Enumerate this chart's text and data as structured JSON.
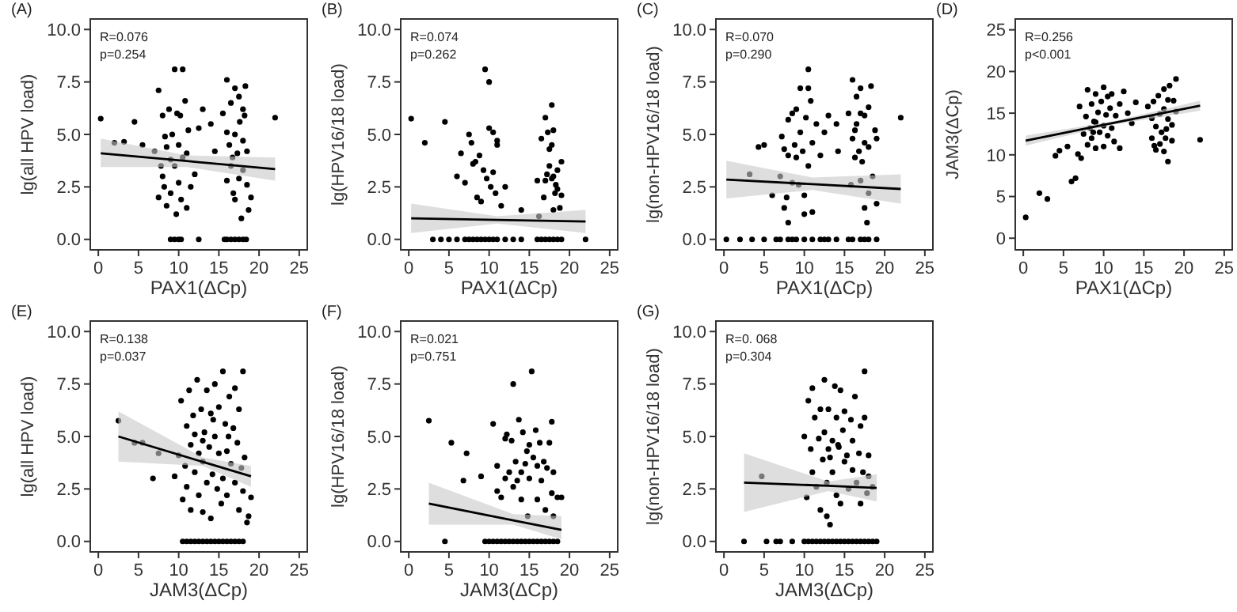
{
  "chart_data": [
    {
      "type": "scatter",
      "title": "(A)",
      "xlabel": "PAX1(ΔCp)",
      "ylabel": "lg(all HPV load)",
      "xlim": [
        -1,
        26
      ],
      "xticks": [
        0,
        5,
        10,
        15,
        20,
        25
      ],
      "ylim": [
        -0.5,
        10.5
      ],
      "yticks": [
        {
          "value": 0,
          "label": "0.0"
        },
        {
          "value": 2.5,
          "label": "2.5"
        },
        {
          "value": 5,
          "label": "5.0"
        },
        {
          "value": 7.5,
          "label": "7.5"
        },
        {
          "value": 10,
          "label": "10.0"
        }
      ],
      "annotations": [
        "R=0.076",
        "p=0.254"
      ],
      "series": [
        {
          "marker": "circle",
          "color": "#000000",
          "x": [
            0.3,
            2,
            3.2,
            4.5,
            5.5,
            22,
            7,
            7.5,
            7.5,
            8,
            8,
            8.2,
            8.5,
            8.5,
            8.8,
            9,
            9,
            9.2,
            9.5,
            9.5,
            9.7,
            10,
            10,
            10.2,
            10.5,
            10.5,
            10.8,
            11,
            11,
            11.2,
            11.5,
            8.3,
            9.8,
            7.8,
            10.3,
            12.5,
            13,
            14,
            14.5,
            12,
            15.5,
            16,
            16,
            16,
            16.3,
            16.5,
            16.5,
            16.8,
            17,
            17,
            17,
            17.3,
            17.5,
            17.5,
            17.8,
            18,
            18,
            18,
            18.2,
            18.5,
            18.5,
            18.7,
            18.3,
            19,
            17.6,
            16.7,
            9,
            9.5,
            10,
            10.3,
            12.5,
            16,
            16.5,
            17,
            17.5,
            18,
            18.4,
            15.7
          ],
          "values": [
            5.75,
            4.6,
            4.65,
            5.6,
            4.5,
            5.8,
            4.2,
            7.1,
            2.0,
            5.9,
            3.0,
            2.5,
            4.4,
            1.6,
            6.2,
            3.8,
            2.2,
            5.0,
            8.1,
            3.5,
            1.2,
            4.5,
            2.7,
            5.9,
            8.1,
            3.9,
            6.6,
            4.1,
            1.5,
            5.2,
            2.5,
            4.9,
            6.0,
            3.5,
            1.9,
            5.3,
            6.2,
            5.5,
            4.2,
            3.1,
            6.0,
            7.6,
            5.1,
            2.8,
            4.5,
            6.5,
            3.5,
            2.2,
            7.2,
            5.0,
            1.9,
            4.1,
            6.8,
            2.9,
            1.0,
            6.2,
            4.7,
            3.3,
            5.9,
            2.6,
            4.2,
            1.4,
            7.3,
            2.0,
            5.6,
            3.9,
            0,
            0,
            0,
            0,
            0,
            0,
            0,
            0,
            0,
            0,
            0,
            0
          ]
        },
        {
          "type": "line",
          "color": "#000000",
          "x": [
            0.3,
            11,
            22
          ],
          "values": [
            4.1,
            3.73,
            3.35
          ],
          "lower": [
            3.45,
            3.45,
            2.8
          ],
          "upper": [
            4.8,
            4.0,
            3.9
          ]
        }
      ]
    },
    {
      "type": "scatter",
      "title": "(B)",
      "xlabel": "PAX1(ΔCp)",
      "ylabel": "lg(HPV16/18 load)",
      "xlim": [
        -1,
        26
      ],
      "xticks": [
        0,
        5,
        10,
        15,
        20,
        25
      ],
      "ylim": [
        -0.5,
        10.5
      ],
      "yticks": [
        {
          "value": 0,
          "label": "0.0"
        },
        {
          "value": 2.5,
          "label": "2.5"
        },
        {
          "value": 5,
          "label": "5.0"
        },
        {
          "value": 7.5,
          "label": "7.5"
        },
        {
          "value": 10,
          "label": "10.0"
        }
      ],
      "annotations": [
        "R=0.074",
        "p=0.262"
      ],
      "series": [
        {
          "marker": "circle",
          "color": "#000000",
          "x": [
            0.3,
            2,
            4.5,
            6,
            6.5,
            7,
            7.5,
            7.8,
            8,
            8.3,
            8.5,
            8.8,
            9,
            9.3,
            9.5,
            9.7,
            10,
            10,
            10.2,
            10.5,
            10.5,
            10.8,
            11,
            11,
            11.5,
            12,
            14,
            16,
            16.2,
            16.5,
            16.8,
            17,
            17,
            17.3,
            17.5,
            17.5,
            17.8,
            17.8,
            17.8,
            18,
            18,
            18,
            18.2,
            18.3,
            18.5,
            18.5,
            18.8,
            19,
            19,
            17.2,
            3,
            4,
            5,
            6,
            7,
            7.5,
            8,
            8.5,
            9,
            9.5,
            10,
            10.5,
            11,
            12,
            13,
            14,
            16,
            16.5,
            17,
            17.5,
            18,
            18.5,
            19,
            22
          ],
          "values": [
            5.75,
            4.6,
            5.6,
            3.0,
            4.1,
            2.7,
            5.0,
            4.6,
            3.6,
            3.7,
            2.0,
            4.0,
            1.8,
            3.3,
            8.1,
            2.9,
            7.5,
            5.3,
            2.5,
            5.1,
            3.2,
            2.2,
            4.7,
            4.5,
            1.6,
            2.5,
            1.4,
            2.8,
            1.1,
            4.8,
            2.0,
            5.8,
            2.8,
            5.1,
            4.3,
            3.5,
            6.4,
            4.5,
            2.9,
            5.2,
            3.0,
            1.4,
            2.2,
            2.6,
            3.3,
            2.4,
            1.5,
            3.7,
            2.1,
            3.1,
            0,
            0,
            0,
            0,
            0,
            0,
            0,
            0,
            0,
            0,
            0,
            0,
            0,
            0,
            0,
            0,
            0,
            0,
            0,
            0,
            0,
            0,
            0,
            0
          ]
        },
        {
          "type": "line",
          "color": "#000000",
          "x": [
            0.3,
            11,
            22
          ],
          "values": [
            1.0,
            0.93,
            0.85
          ],
          "lower": [
            0.3,
            0.75,
            0.3
          ],
          "upper": [
            1.7,
            1.1,
            1.4
          ]
        }
      ]
    },
    {
      "type": "scatter",
      "title": "(C)",
      "xlabel": "PAX1(ΔCp)",
      "ylabel": "lg(non-HPV16/18 load)",
      "xlim": [
        -1,
        26
      ],
      "xticks": [
        0,
        5,
        10,
        15,
        20,
        25
      ],
      "ylim": [
        -0.5,
        10.5
      ],
      "yticks": [
        {
          "value": 0,
          "label": "0.0"
        },
        {
          "value": 2.5,
          "label": "2.5"
        },
        {
          "value": 5,
          "label": "5.0"
        },
        {
          "value": 7.5,
          "label": "7.5"
        },
        {
          "value": 10,
          "label": "10.0"
        }
      ],
      "annotations": [
        "R=0.070",
        "p=0.290"
      ],
      "series": [
        {
          "marker": "circle",
          "color": "#000000",
          "x": [
            3.2,
            4.3,
            5,
            6,
            7,
            7.2,
            7.5,
            7.5,
            7.8,
            8,
            8,
            8,
            8.5,
            8.5,
            8.8,
            9,
            9,
            9.3,
            9.5,
            9.5,
            9.8,
            10,
            10,
            10.2,
            10.5,
            10.5,
            10.5,
            10.8,
            11,
            11,
            11.5,
            12,
            12.5,
            13,
            14,
            14.2,
            15.5,
            15.8,
            16,
            16,
            16.3,
            16.5,
            16.5,
            16.8,
            17,
            17,
            17.2,
            17.5,
            17.5,
            17.5,
            17.8,
            18,
            18,
            18,
            18.3,
            18.5,
            18.8,
            19,
            19,
            22,
            17,
            16.3,
            0.3,
            2,
            3.5,
            5,
            6.5,
            7,
            8,
            8.5,
            9,
            10,
            11,
            12,
            12.5,
            13,
            14,
            15.5,
            16,
            17,
            17.5,
            18,
            19
          ],
          "values": [
            3.1,
            4.4,
            4.5,
            2.1,
            3.0,
            4.9,
            1.5,
            4.3,
            2.0,
            0.8,
            5.7,
            4.0,
            2.7,
            6.0,
            4.5,
            6.2,
            3.9,
            2.6,
            7.2,
            5.1,
            4.2,
            2.1,
            1.2,
            5.8,
            7.2,
            8.1,
            3.5,
            6.6,
            4.6,
            1.3,
            5.5,
            4.0,
            5.1,
            5.9,
            5.5,
            4.2,
            6.0,
            2.6,
            7.6,
            4.8,
            3.9,
            6.8,
            5.5,
            4.2,
            7.2,
            2.8,
            3.7,
            5.9,
            1.5,
            4.6,
            0.8,
            6.3,
            4.4,
            2.2,
            7.3,
            3.0,
            5.2,
            4.8,
            1.7,
            5.8,
            6.0,
            5.2,
            0,
            0,
            0,
            0,
            0,
            0,
            0,
            0,
            0,
            0,
            0,
            0,
            0,
            0,
            0,
            0,
            0,
            0,
            0,
            0,
            0
          ]
        },
        {
          "type": "line",
          "color": "#000000",
          "x": [
            0.3,
            11,
            22
          ],
          "values": [
            2.85,
            2.63,
            2.4
          ],
          "lower": [
            1.95,
            2.35,
            1.7
          ],
          "upper": [
            3.75,
            2.95,
            3.1
          ]
        }
      ]
    },
    {
      "type": "scatter",
      "title": "(D)",
      "xlabel": "PAX1(ΔCp)",
      "ylabel": "JAM3(ΔCp)",
      "xlim": [
        -1,
        26
      ],
      "xticks": [
        0,
        5,
        10,
        15,
        20,
        25
      ],
      "ylim": [
        -1.4,
        26.3
      ],
      "yticks": [
        0,
        5,
        10,
        15,
        20,
        25
      ],
      "annotations": [
        "R=0.256",
        "p<0.001"
      ],
      "series": [
        {
          "marker": "circle",
          "color": "#000000",
          "x": [
            0.3,
            2,
            3,
            4,
            4.5,
            5.5,
            6,
            6.5,
            6.8,
            7,
            7.2,
            7.5,
            7.8,
            8,
            8,
            8.3,
            8.5,
            8.5,
            8.8,
            9,
            9,
            9.3,
            9.5,
            9.7,
            10,
            10,
            10,
            10.3,
            10.5,
            10.5,
            10.8,
            11,
            11,
            11.3,
            11.5,
            12,
            12,
            12.5,
            13,
            13.5,
            14,
            9,
            8.7,
            15.5,
            16,
            16,
            16.2,
            16.5,
            16.5,
            16.8,
            17,
            17,
            17.2,
            17.5,
            17.5,
            17.5,
            17.8,
            18,
            18,
            18,
            18.2,
            18.5,
            18.5,
            18.7,
            19,
            19,
            22,
            16.3,
            17.7
          ],
          "values": [
            2.5,
            5.4,
            4.7,
            9.9,
            10.5,
            11,
            6.8,
            7.2,
            10.1,
            15.8,
            9.6,
            12.5,
            14.6,
            17.8,
            11.2,
            13.2,
            16.1,
            12.0,
            14.0,
            17.3,
            10.8,
            15.1,
            12.7,
            16.4,
            18.1,
            13.5,
            11.0,
            14.8,
            17.0,
            12.3,
            15.6,
            13.2,
            17.3,
            11.6,
            14.7,
            10.8,
            16.1,
            17.6,
            15.0,
            13.8,
            16.3,
            13.9,
            12.7,
            15.8,
            14.4,
            12.0,
            16.4,
            10.6,
            13.4,
            17.1,
            11.3,
            14.9,
            12.7,
            17.9,
            15.5,
            10.4,
            13.1,
            9.2,
            16.6,
            14.3,
            18.3,
            13.6,
            11.7,
            16.5,
            19.1,
            15.2,
            11.8,
            11.1,
            12.0
          ]
        },
        {
          "type": "line",
          "color": "#000000",
          "x": [
            0.3,
            11,
            22
          ],
          "values": [
            11.7,
            13.8,
            15.9
          ],
          "lower": [
            11.1,
            13.6,
            15.3
          ],
          "upper": [
            12.3,
            14.0,
            16.5
          ]
        }
      ]
    },
    {
      "type": "scatter",
      "title": "(E)",
      "xlabel": "JAM3(ΔCp)",
      "ylabel": "lg(all HPV load)",
      "xlim": [
        -1,
        26
      ],
      "xticks": [
        0,
        5,
        10,
        15,
        20,
        25
      ],
      "ylim": [
        -0.5,
        10.5
      ],
      "yticks": [
        {
          "value": 0,
          "label": "0.0"
        },
        {
          "value": 2.5,
          "label": "2.5"
        },
        {
          "value": 5,
          "label": "5.0"
        },
        {
          "value": 7.5,
          "label": "7.5"
        },
        {
          "value": 10,
          "label": "10.0"
        }
      ],
      "annotations": [
        "R=0.138",
        "p=0.037"
      ],
      "series": [
        {
          "marker": "circle",
          "color": "#000000",
          "x": [
            2.5,
            4.5,
            5.5,
            6.8,
            7.5,
            9.5,
            10,
            10.3,
            10.5,
            10.8,
            11,
            11,
            11.3,
            11.5,
            11.5,
            11.8,
            12,
            12,
            12.3,
            12.5,
            12.5,
            12.8,
            13,
            13,
            13.2,
            13.5,
            13.5,
            13.8,
            14,
            14,
            14.2,
            14.5,
            14.5,
            14.8,
            15,
            15,
            15.3,
            15.5,
            15.5,
            15.8,
            16,
            16,
            16.3,
            16.5,
            16.8,
            17,
            17,
            17.3,
            17.5,
            17.5,
            17.8,
            18,
            18,
            18.2,
            18.5,
            18.7,
            19,
            13,
            14.3,
            16.2,
            10.5,
            11,
            11.5,
            12,
            12.5,
            13,
            13.5,
            14,
            14.5,
            15,
            15.5,
            16,
            16.5,
            17,
            17.5,
            18
          ],
          "values": [
            5.75,
            4.7,
            4.7,
            3.0,
            4.2,
            3.1,
            4.1,
            6.7,
            2.0,
            3.6,
            5.5,
            2.6,
            7.2,
            4.6,
            1.5,
            6.0,
            3.3,
            5.1,
            7.7,
            2.2,
            4.2,
            6.3,
            3.8,
            1.4,
            5.2,
            7.2,
            2.8,
            4.5,
            6.1,
            1.1,
            3.2,
            7.5,
            5.0,
            2.5,
            4.2,
            6.4,
            1.8,
            8.1,
            3.0,
            5.6,
            4.3,
            2.2,
            6.9,
            3.7,
            5.4,
            2.8,
            7.3,
            4.7,
            1.5,
            6.3,
            3.5,
            8.1,
            2.4,
            4.0,
            0.9,
            1.2,
            2.1,
            4.8,
            5.8,
            5.0,
            0,
            0,
            0,
            0,
            0,
            0,
            0,
            0,
            0,
            0,
            0,
            0,
            0,
            0,
            0,
            0
          ]
        },
        {
          "type": "line",
          "color": "#000000",
          "x": [
            2.5,
            13,
            19
          ],
          "values": [
            5.0,
            3.79,
            3.1
          ],
          "lower": [
            3.8,
            3.6,
            2.6
          ],
          "upper": [
            6.2,
            4.0,
            3.6
          ]
        }
      ]
    },
    {
      "type": "scatter",
      "title": "(F)",
      "xlabel": "JAM3(ΔCp)",
      "ylabel": "lg(HPV16/18 load)",
      "xlim": [
        -1,
        26
      ],
      "xticks": [
        0,
        5,
        10,
        15,
        20,
        25
      ],
      "ylim": [
        -0.5,
        10.5
      ],
      "yticks": [
        {
          "value": 0,
          "label": "0.0"
        },
        {
          "value": 2.5,
          "label": "2.5"
        },
        {
          "value": 5,
          "label": "5.0"
        },
        {
          "value": 7.5,
          "label": "7.5"
        },
        {
          "value": 10,
          "label": "10.0"
        }
      ],
      "annotations": [
        "R=0.021",
        "p=0.751"
      ],
      "series": [
        {
          "marker": "circle",
          "color": "#000000",
          "x": [
            2.5,
            5.3,
            6.8,
            7.2,
            9,
            10.5,
            11,
            11,
            11.5,
            12,
            12.2,
            12.5,
            12.8,
            13,
            13,
            13.3,
            13.5,
            13.7,
            14,
            14,
            14.2,
            14.5,
            14.8,
            15,
            15,
            15.3,
            15.5,
            15.8,
            16,
            16,
            16.3,
            16.5,
            16.8,
            17,
            17.2,
            17.5,
            17.8,
            17.8,
            18,
            18,
            18.5,
            19,
            12,
            14.7,
            4.5,
            9.5,
            10,
            10.5,
            11,
            11.5,
            12,
            12.5,
            13,
            13.5,
            14,
            14.5,
            15,
            15.5,
            16,
            16.5,
            17,
            17.5,
            18,
            18.5
          ],
          "values": [
            5.75,
            4.7,
            2.9,
            4.2,
            3.1,
            5.6,
            2.4,
            3.6,
            2.1,
            4.9,
            5.1,
            3.3,
            4.8,
            7.5,
            2.6,
            3.8,
            2.9,
            5.8,
            3.3,
            2.0,
            5.2,
            3.7,
            1.2,
            4.6,
            3.0,
            8.1,
            4.0,
            5.3,
            3.6,
            2.0,
            4.7,
            2.9,
            3.8,
            1.5,
            3.5,
            4.7,
            5.7,
            2.3,
            3.3,
            1.2,
            2.1,
            2.1,
            3.0,
            4.3,
            0,
            0,
            0,
            0,
            0,
            0,
            0,
            0,
            0,
            0,
            0,
            0,
            0,
            0,
            0,
            0,
            0,
            0,
            0,
            0
          ]
        },
        {
          "type": "line",
          "color": "#000000",
          "x": [
            2.5,
            13,
            19
          ],
          "values": [
            1.8,
            1.0,
            0.55
          ],
          "lower": [
            0.8,
            0.8,
            0.1
          ],
          "upper": [
            2.8,
            1.3,
            1.2
          ]
        }
      ]
    },
    {
      "type": "scatter",
      "title": "(G)",
      "xlabel": "JAM3(ΔCp)",
      "ylabel": "lg(non-HPV16/18 load)",
      "xlim": [
        -1,
        26
      ],
      "xticks": [
        0,
        5,
        10,
        15,
        20,
        25
      ],
      "ylim": [
        -0.5,
        10.5
      ],
      "yticks": [
        {
          "value": 0,
          "label": "0.0"
        },
        {
          "value": 2.5,
          "label": "2.5"
        },
        {
          "value": 5,
          "label": "5.0"
        },
        {
          "value": 7.5,
          "label": "7.5"
        },
        {
          "value": 10,
          "label": "10.0"
        }
      ],
      "annotations": [
        "R=0. 068",
        "p=0.304"
      ],
      "series": [
        {
          "marker": "circle",
          "color": "#000000",
          "x": [
            4.7,
            10,
            10.3,
            10.5,
            10.8,
            11,
            11,
            11.3,
            11.5,
            11.8,
            12,
            12,
            12.3,
            12.5,
            12.5,
            12.8,
            12.8,
            13,
            13,
            13.2,
            13.5,
            13.5,
            13.8,
            14,
            14,
            14.3,
            14.5,
            14.5,
            14.8,
            15,
            15,
            15.3,
            15.5,
            15.8,
            16,
            16,
            16.3,
            16.5,
            16.8,
            17,
            17,
            17.3,
            17.5,
            17.5,
            17.8,
            18,
            18,
            18.5,
            13.2,
            14.2,
            2.5,
            5.3,
            6.5,
            7,
            8.5,
            10,
            10.5,
            11,
            11.5,
            12,
            12.5,
            13,
            13.5,
            14,
            14.5,
            15,
            15.5,
            16,
            16.5,
            17,
            17.5,
            18,
            18.5,
            19
          ],
          "values": [
            3.1,
            5.0,
            2.1,
            6.7,
            4.4,
            3.3,
            7.3,
            5.9,
            2.6,
            4.9,
            1.5,
            6.3,
            3.9,
            7.7,
            5.2,
            1.2,
            2.8,
            4.4,
            6.3,
            0.8,
            4.8,
            3.3,
            7.4,
            5.9,
            2.2,
            4.5,
            7.2,
            1.8,
            5.3,
            3.8,
            6.2,
            4.1,
            2.5,
            5.8,
            3.4,
            4.8,
            6.9,
            2.8,
            4.2,
            5.5,
            1.8,
            3.3,
            8.1,
            5.9,
            2.3,
            4.1,
            3.1,
            2.6,
            4.0,
            4.6,
            0,
            0,
            0,
            0,
            0,
            0,
            0,
            0,
            0,
            0,
            0,
            0,
            0,
            0,
            0,
            0,
            0,
            0,
            0,
            0,
            0,
            0,
            0,
            0
          ]
        },
        {
          "type": "line",
          "color": "#000000",
          "x": [
            2.5,
            13,
            19
          ],
          "values": [
            2.8,
            2.65,
            2.55
          ],
          "lower": [
            1.4,
            2.4,
            1.9
          ],
          "upper": [
            4.2,
            2.85,
            3.2
          ]
        }
      ]
    }
  ]
}
